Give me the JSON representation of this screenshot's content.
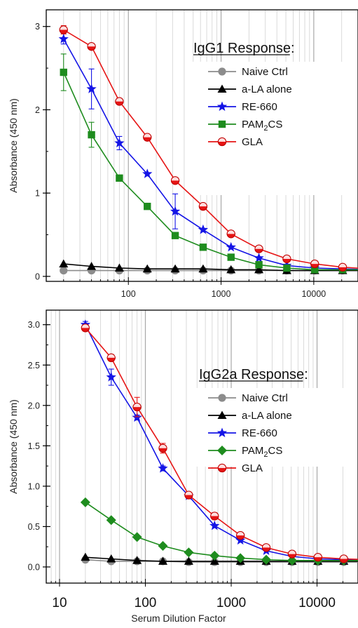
{
  "chart_data": [
    {
      "type": "line",
      "title": "IgG1 Response:",
      "xlabel": "",
      "ylabel": "Absorbance (450 nm)",
      "xscale": "log",
      "xlim": [
        13,
        30000
      ],
      "ylim": [
        -0.06,
        3.2
      ],
      "xticks": [
        100,
        1000,
        10000
      ],
      "xtick_labels": [
        "100",
        "1000",
        "10000"
      ],
      "yticks": [
        0,
        1,
        2,
        3
      ],
      "ytick_labels": [
        "0",
        "1",
        "2",
        "3"
      ],
      "grid": "vertical log grid",
      "legend_position": "top-right",
      "x": [
        20,
        40,
        80,
        160,
        320,
        640,
        1280,
        2560,
        5120,
        10240,
        20480,
        40960
      ],
      "series": [
        {
          "name": "Naive Ctrl",
          "color": "#8c8c8c",
          "marker": "circle",
          "values": [
            0.07,
            0.07,
            0.07,
            0.07,
            0.07,
            0.07,
            0.07,
            0.07,
            0.07,
            0.07,
            0.07,
            0.07
          ]
        },
        {
          "name": "a-LA alone",
          "color": "#000000",
          "marker": "triangle",
          "values": [
            0.15,
            0.12,
            0.1,
            0.09,
            0.09,
            0.09,
            0.08,
            0.08,
            0.07,
            0.07,
            0.07,
            0.07
          ]
        },
        {
          "name": "RE-660",
          "color": "#1414e6",
          "marker": "star",
          "values": [
            2.85,
            2.25,
            1.6,
            1.23,
            0.78,
            0.56,
            0.35,
            0.22,
            0.13,
            0.1,
            0.09,
            0.08
          ],
          "errors": [
            0.06,
            0.24,
            0.08,
            0.02,
            0.21,
            0.02,
            0.02,
            0.02,
            0.01,
            0.01,
            0.01,
            0.01
          ]
        },
        {
          "name": "PAM2CS",
          "color": "#1e8c1e",
          "marker": "square",
          "values": [
            2.45,
            1.7,
            1.18,
            0.84,
            0.49,
            0.35,
            0.23,
            0.14,
            0.1,
            0.08,
            0.08,
            0.08
          ],
          "errors": [
            0.22,
            0.15,
            0.02,
            0.02,
            0.02,
            0.02,
            0.01,
            0.01,
            0.01,
            0.01,
            0.01,
            0.01
          ]
        },
        {
          "name": "GLA",
          "color": "#e61414",
          "marker": "circle-half",
          "values": [
            2.96,
            2.76,
            2.1,
            1.67,
            1.15,
            0.84,
            0.51,
            0.33,
            0.21,
            0.15,
            0.11,
            0.09
          ],
          "errors": [
            0.05,
            0.02,
            0.02,
            0.02,
            0.02,
            0.02,
            0.01,
            0.01,
            0.01,
            0.01,
            0.01,
            0.01
          ]
        }
      ]
    },
    {
      "type": "line",
      "title": "IgG2a Response:",
      "xlabel": "Serum Dilution Factor",
      "ylabel": "Absorbance (450 nm)",
      "xscale": "log",
      "xlim": [
        7,
        30000
      ],
      "ylim": [
        -0.2,
        3.18
      ],
      "xticks": [
        10,
        100,
        1000,
        10000
      ],
      "xtick_labels": [
        "10",
        "100",
        "1000",
        "10000"
      ],
      "yticks": [
        0,
        0.5,
        1,
        1.5,
        2,
        2.5,
        3
      ],
      "ytick_labels": [
        "0.0",
        "0.5",
        "1.0",
        "1.5",
        "2.0",
        "2.5",
        "3.0"
      ],
      "grid": "vertical log grid",
      "legend_position": "top-right",
      "x": [
        20,
        40,
        80,
        160,
        320,
        640,
        1280,
        2560,
        5120,
        10240,
        20480,
        40960
      ],
      "series": [
        {
          "name": "Naive Ctrl",
          "color": "#8c8c8c",
          "marker": "circle",
          "values": [
            0.09,
            0.07,
            0.07,
            0.07,
            0.06,
            0.06,
            0.06,
            0.06,
            0.06,
            0.06,
            0.06,
            0.06
          ]
        },
        {
          "name": "a-LA alone",
          "color": "#000000",
          "marker": "triangle",
          "values": [
            0.12,
            0.1,
            0.08,
            0.07,
            0.07,
            0.07,
            0.07,
            0.07,
            0.07,
            0.07,
            0.07,
            0.07
          ]
        },
        {
          "name": "RE-660",
          "color": "#1414e6",
          "marker": "star",
          "values": [
            3.0,
            2.35,
            1.85,
            1.22,
            0.88,
            0.51,
            0.33,
            0.2,
            0.13,
            0.1,
            0.09,
            0.08
          ],
          "errors": [
            0.04,
            0.1,
            0.03,
            0.03,
            0.03,
            0.02,
            0.02,
            0.02,
            0.01,
            0.01,
            0.01,
            0.01
          ]
        },
        {
          "name": "PAM2CS",
          "color": "#1e8c1e",
          "marker": "diamond",
          "values": [
            0.8,
            0.58,
            0.37,
            0.26,
            0.18,
            0.14,
            0.11,
            0.09,
            0.08,
            0.08,
            0.08,
            0.08
          ]
        },
        {
          "name": "GLA",
          "color": "#e61414",
          "marker": "circle-half",
          "values": [
            2.96,
            2.59,
            1.98,
            1.47,
            0.89,
            0.63,
            0.39,
            0.24,
            0.16,
            0.12,
            0.1,
            0.09
          ],
          "errors": [
            0.04,
            0.04,
            0.12,
            0.06,
            0.02,
            0.04,
            0.02,
            0.02,
            0.01,
            0.01,
            0.01,
            0.01
          ]
        }
      ]
    }
  ]
}
